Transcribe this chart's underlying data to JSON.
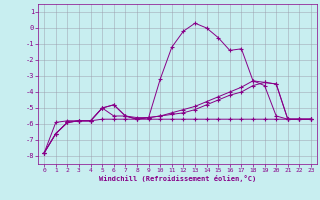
{
  "xlabel": "Windchill (Refroidissement éolien,°C)",
  "bg_color": "#c8eef0",
  "grid_color": "#9999aa",
  "line_color": "#880088",
  "spine_color": "#880088",
  "xlim": [
    -0.5,
    23.5
  ],
  "ylim": [
    -8.5,
    1.5
  ],
  "yticks": [
    1,
    0,
    -1,
    -2,
    -3,
    -4,
    -5,
    -6,
    -7,
    -8
  ],
  "xticks": [
    0,
    1,
    2,
    3,
    4,
    5,
    6,
    7,
    8,
    9,
    10,
    11,
    12,
    13,
    14,
    15,
    16,
    17,
    18,
    19,
    20,
    21,
    22,
    23
  ],
  "x": [
    0,
    1,
    2,
    3,
    4,
    5,
    6,
    7,
    8,
    9,
    10,
    11,
    12,
    13,
    14,
    15,
    16,
    17,
    18,
    19,
    20,
    21,
    22,
    23
  ],
  "line1": [
    -7.8,
    -6.6,
    -5.9,
    -5.8,
    -5.8,
    -5.0,
    -4.8,
    -5.5,
    -5.7,
    -5.6,
    -3.2,
    -1.2,
    -0.2,
    0.3,
    0.0,
    -0.6,
    -1.4,
    -1.3,
    -3.3,
    -3.6,
    -5.5,
    -5.7,
    -5.7,
    -5.7
  ],
  "line2": [
    -7.8,
    -6.6,
    -5.9,
    -5.8,
    -5.8,
    -5.0,
    -4.8,
    -5.5,
    -5.7,
    -5.6,
    -5.5,
    -5.3,
    -5.1,
    -4.9,
    -4.6,
    -4.3,
    -4.0,
    -3.7,
    -3.3,
    -3.4,
    -3.5,
    -5.7,
    -5.7,
    -5.7
  ],
  "line3": [
    -7.8,
    -6.6,
    -5.9,
    -5.8,
    -5.8,
    -5.0,
    -5.5,
    -5.5,
    -5.6,
    -5.6,
    -5.5,
    -5.4,
    -5.3,
    -5.1,
    -4.8,
    -4.5,
    -4.2,
    -4.0,
    -3.6,
    -3.4,
    -3.5,
    -5.7,
    -5.7,
    -5.7
  ],
  "line4": [
    -7.8,
    -5.9,
    -5.8,
    -5.8,
    -5.8,
    -5.7,
    -5.7,
    -5.7,
    -5.7,
    -5.7,
    -5.7,
    -5.7,
    -5.7,
    -5.7,
    -5.7,
    -5.7,
    -5.7,
    -5.7,
    -5.7,
    -5.7,
    -5.7,
    -5.7,
    -5.7,
    -5.7
  ]
}
